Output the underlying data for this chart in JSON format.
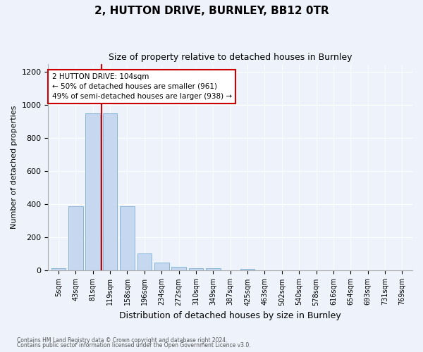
{
  "title1": "2, HUTTON DRIVE, BURNLEY, BB12 0TR",
  "title2": "Size of property relative to detached houses in Burnley",
  "xlabel": "Distribution of detached houses by size in Burnley",
  "ylabel": "Number of detached properties",
  "footer1": "Contains HM Land Registry data © Crown copyright and database right 2024.",
  "footer2": "Contains public sector information licensed under the Open Government Licence v3.0.",
  "annotation_line1": "2 HUTTON DRIVE: 104sqm",
  "annotation_line2": "← 50% of detached houses are smaller (961)",
  "annotation_line3": "49% of semi-detached houses are larger (938) →",
  "bar_categories": [
    "5sqm",
    "43sqm",
    "81sqm",
    "119sqm",
    "158sqm",
    "196sqm",
    "234sqm",
    "272sqm",
    "310sqm",
    "349sqm",
    "387sqm",
    "425sqm",
    "463sqm",
    "502sqm",
    "540sqm",
    "578sqm",
    "616sqm",
    "654sqm",
    "693sqm",
    "731sqm",
    "769sqm"
  ],
  "bar_values": [
    14,
    390,
    950,
    950,
    390,
    105,
    50,
    25,
    15,
    13,
    0,
    12,
    0,
    0,
    0,
    0,
    0,
    0,
    0,
    0,
    0
  ],
  "bar_color": "#c5d8f0",
  "bar_edge_color": "#7bafd4",
  "vline_color": "#cc0000",
  "annotation_box_color": "#cc0000",
  "background_color": "#eef2fb",
  "plot_bg_color": "#eef2fb",
  "ylim": [
    0,
    1250
  ],
  "yticks": [
    0,
    200,
    400,
    600,
    800,
    1000,
    1200
  ],
  "vline_x": 2.5
}
